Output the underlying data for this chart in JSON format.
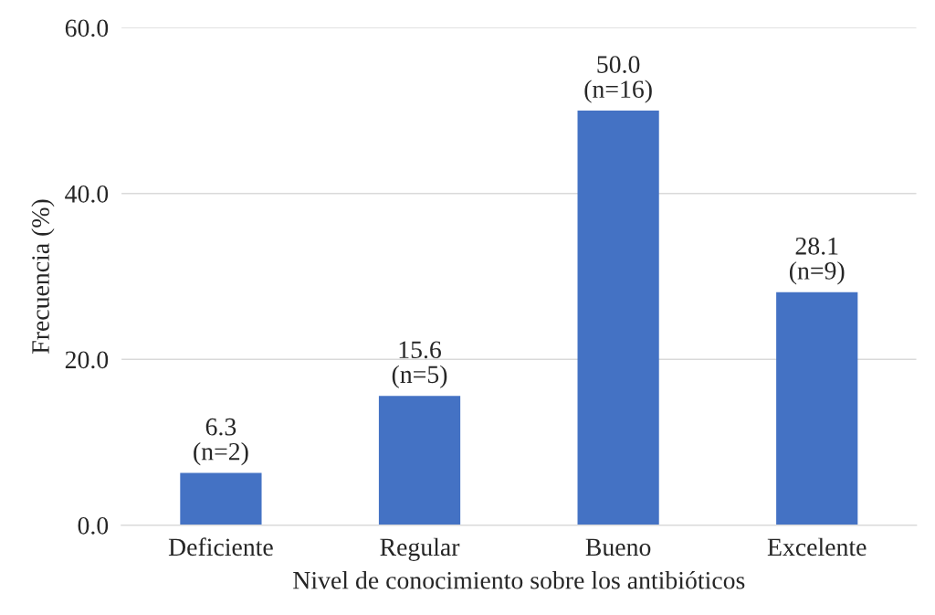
{
  "chart_data": {
    "type": "bar",
    "xlabel": "Nivel de conocimiento sobre los antibióticos",
    "ylabel": "Frecuencia (%)",
    "categories": [
      "Deficiente",
      "Regular",
      "Bueno",
      "Excelente"
    ],
    "values": [
      6.3,
      15.6,
      50.0,
      28.1
    ],
    "value_labels": [
      "6.3\n(n=2)",
      "15.6\n(n=5)",
      "50.0\n(n=16)",
      "28.1\n(n=9)"
    ],
    "color": "#4472c4",
    "ylim": [
      0,
      60
    ],
    "yticks": [
      {
        "value": 0,
        "label": "0.0"
      },
      {
        "value": 20,
        "label": "20.0"
      },
      {
        "value": 40,
        "label": "40.0"
      },
      {
        "value": 60,
        "label": "60.0"
      }
    ],
    "grid": "y",
    "legend": false
  }
}
